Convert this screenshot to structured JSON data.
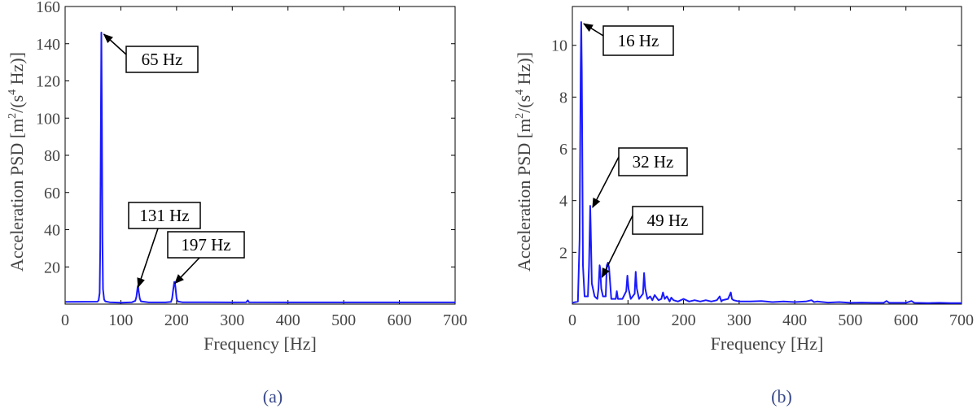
{
  "chart_data": [
    {
      "id": "a",
      "type": "line",
      "caption": "(a)",
      "xlabel": "Frequency  [Hz]",
      "ylabel_prefix": "Acceleration PSD  [m",
      "ylabel_mid": "/(s",
      "ylabel_suffix": " Hz)]",
      "ylabel_sup1": "2",
      "ylabel_sup2": "4",
      "xlim": [
        0,
        700
      ],
      "ylim": [
        0,
        160
      ],
      "xticks": [
        0,
        100,
        200,
        300,
        400,
        500,
        600,
        700
      ],
      "yticks": [
        20,
        40,
        60,
        80,
        100,
        120,
        140,
        160
      ],
      "grid": false,
      "line_color": "#1a1aff",
      "series": [
        {
          "x": [
            0,
            58,
            60,
            62,
            63,
            64,
            65,
            66,
            67,
            68,
            70,
            72,
            80,
            100,
            120,
            126,
            128,
            130,
            131,
            132,
            134,
            136,
            150,
            180,
            190,
            192,
            194,
            196,
            197,
            198,
            200,
            202,
            210,
            250,
            300,
            325,
            328,
            330,
            400,
            500,
            600,
            700
          ],
          "y": [
            1.2,
            1.3,
            2,
            6,
            30,
            90,
            146,
            95,
            35,
            8,
            2.5,
            1.5,
            1,
            0.8,
            1,
            1.8,
            4,
            9,
            10,
            7,
            3,
            1.5,
            0.9,
            0.9,
            1.2,
            3,
            8,
            12,
            11.5,
            9,
            3,
            1.5,
            1,
            1,
            0.9,
            1,
            2,
            1,
            0.9,
            0.9,
            0.9,
            0.9
          ]
        }
      ],
      "annotations": [
        {
          "label": "65 Hz",
          "x": 65,
          "y": 146
        },
        {
          "label": "131 Hz",
          "x": 131,
          "y": 10
        },
        {
          "label": "197 Hz",
          "x": 197,
          "y": 12
        }
      ]
    },
    {
      "id": "b",
      "type": "line",
      "caption": "(b)",
      "xlabel": "Frequency  [Hz]",
      "ylabel_prefix": "Acceleration PSD  [m",
      "ylabel_mid": "/(s",
      "ylabel_suffix": " Hz)]",
      "ylabel_sup1": "2",
      "ylabel_sup2": "4",
      "xlim": [
        0,
        700
      ],
      "ylim": [
        0,
        11.5
      ],
      "xticks": [
        0,
        100,
        200,
        300,
        400,
        500,
        600,
        700
      ],
      "yticks": [
        2,
        4,
        6,
        8,
        10
      ],
      "grid": false,
      "line_color": "#1a1aff",
      "series": [
        {
          "x": [
            0,
            10,
            13,
            15,
            16,
            17,
            19,
            22,
            28,
            30,
            32,
            33,
            35,
            40,
            45,
            47,
            49,
            50,
            52,
            55,
            60,
            62,
            64,
            66,
            70,
            78,
            80,
            82,
            90,
            97,
            99,
            101,
            105,
            112,
            114,
            116,
            120,
            127,
            129,
            131,
            135,
            140,
            144,
            148,
            155,
            160,
            163,
            166,
            170,
            175,
            178,
            182,
            190,
            200,
            210,
            220,
            230,
            240,
            250,
            260,
            265,
            268,
            270,
            280,
            285,
            287,
            290,
            300,
            320,
            340,
            360,
            380,
            400,
            420,
            430,
            435,
            440,
            460,
            480,
            500,
            520,
            540,
            560,
            565,
            570,
            600,
            610,
            615,
            640,
            660,
            680,
            700
          ],
          "y": [
            0.05,
            0.1,
            2.5,
            9,
            10.9,
            9,
            1.5,
            0.3,
            0.3,
            1.5,
            3.8,
            3,
            0.8,
            0.3,
            0.2,
            0.6,
            1.5,
            1.4,
            0.6,
            0.3,
            0.3,
            1.5,
            1.6,
            1.4,
            0.2,
            0.2,
            0.5,
            0.2,
            0.2,
            0.5,
            1.1,
            0.6,
            0.2,
            0.4,
            1.25,
            0.6,
            0.2,
            0.4,
            1.2,
            0.6,
            0.2,
            0.3,
            0.15,
            0.35,
            0.15,
            0.2,
            0.45,
            0.2,
            0.3,
            0.1,
            0.25,
            0.15,
            0.1,
            0.2,
            0.1,
            0.15,
            0.1,
            0.15,
            0.1,
            0.15,
            0.3,
            0.1,
            0.15,
            0.2,
            0.45,
            0.2,
            0.15,
            0.1,
            0.1,
            0.12,
            0.08,
            0.1,
            0.08,
            0.1,
            0.15,
            0.08,
            0.1,
            0.06,
            0.08,
            0.05,
            0.06,
            0.05,
            0.05,
            0.12,
            0.05,
            0.05,
            0.12,
            0.05,
            0.04,
            0.05,
            0.04,
            0.04
          ]
        }
      ],
      "annotations": [
        {
          "label": "16 Hz",
          "x": 16,
          "y": 10.9
        },
        {
          "label": "32 Hz",
          "x": 32,
          "y": 3.8
        },
        {
          "label": "49 Hz",
          "x": 49,
          "y": 1.1
        }
      ]
    }
  ]
}
